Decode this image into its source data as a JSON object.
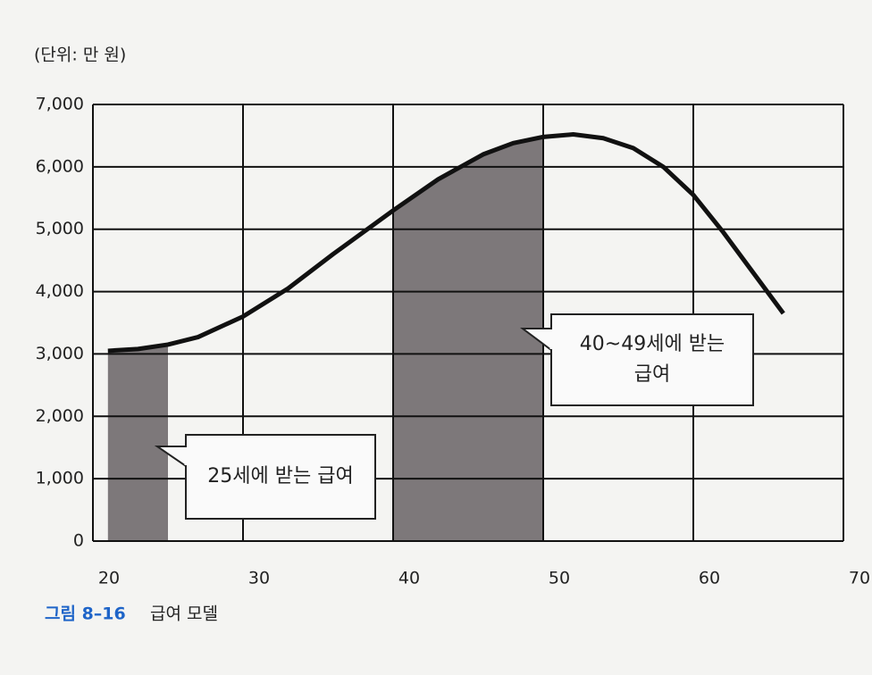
{
  "chart_data": {
    "type": "line",
    "unit_label": "(단위: 만 원)",
    "figure_label": "그림 8–16",
    "title": "급여 모델",
    "x": [
      21,
      23,
      25,
      27,
      30,
      33,
      36,
      40,
      43,
      46,
      48,
      50,
      52,
      54,
      56,
      58,
      60,
      62,
      64,
      66
    ],
    "values": [
      3050,
      3080,
      3150,
      3270,
      3600,
      4050,
      4600,
      5300,
      5800,
      6200,
      6380,
      6480,
      6520,
      6460,
      6300,
      6000,
      5550,
      4950,
      4300,
      3650
    ],
    "color": "#111111",
    "highlight_ranges": [
      [
        21,
        25
      ],
      [
        40,
        50
      ]
    ],
    "highlight_color": "#7d787a",
    "annotations": [
      {
        "lines": [
          "25세에 받는 급여"
        ]
      },
      {
        "lines": [
          "40~49세에 받는",
          "급여"
        ]
      }
    ],
    "xlim": [
      20,
      70
    ],
    "xticks": [
      20,
      30,
      40,
      50,
      60,
      70
    ],
    "ylim": [
      0,
      7000
    ],
    "yticks": [
      0,
      {
        "value": 1000,
        "label": "1,000"
      },
      {
        "value": 2000,
        "label": "2,000"
      },
      {
        "value": 3000,
        "label": "3,000"
      },
      {
        "value": 4000,
        "label": "4,000"
      },
      {
        "value": 5000,
        "label": "5,000"
      },
      {
        "value": 6000,
        "label": "6,000"
      },
      {
        "value": 7000,
        "label": "7,000"
      }
    ],
    "grid": true
  }
}
